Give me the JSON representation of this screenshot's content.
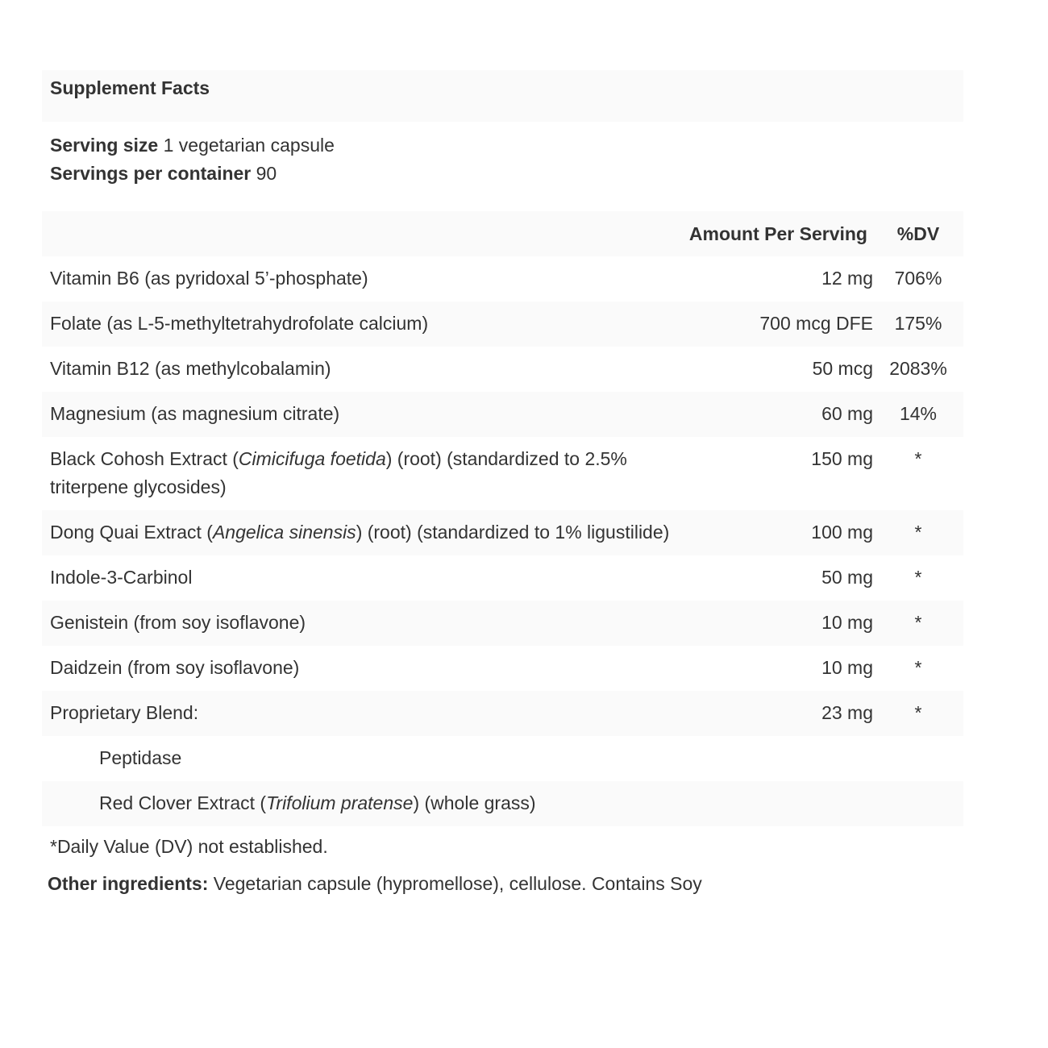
{
  "title": "Supplement Facts",
  "serving": {
    "size_label": "Serving size",
    "size_value": "1 vegetarian capsule",
    "per_container_label": "Servings per container",
    "per_container_value": "90"
  },
  "table": {
    "headers": {
      "name": "",
      "amount": "Amount Per Serving",
      "dv": "%DV"
    },
    "rows": [
      {
        "pre": "Vitamin B6 (as pyridoxal 5’-phosphate)",
        "italic": "",
        "post": "",
        "amount": "12 mg",
        "dv": "706%"
      },
      {
        "pre": "Folate (as L-5-methyltetrahydrofolate calcium)",
        "italic": "",
        "post": "",
        "amount": "700 mcg DFE",
        "dv": "175%"
      },
      {
        "pre": "Vitamin B12 (as methylcobalamin)",
        "italic": "",
        "post": "",
        "amount": "50 mcg",
        "dv": "2083%"
      },
      {
        "pre": "Magnesium (as magnesium citrate)",
        "italic": "",
        "post": "",
        "amount": "60 mg",
        "dv": "14%"
      },
      {
        "pre": "Black Cohosh Extract (",
        "italic": "Cimicifuga foetida",
        "post": ") (root) (standardized to 2.5% triterpene glycosides)",
        "amount": "150 mg",
        "dv": "*"
      },
      {
        "pre": "Dong Quai Extract (",
        "italic": "Angelica sinensis",
        "post": ") (root) (standardized to 1% ligustilide)",
        "amount": "100 mg",
        "dv": "*"
      },
      {
        "pre": "Indole-3-Carbinol",
        "italic": "",
        "post": "",
        "amount": "50 mg",
        "dv": "*"
      },
      {
        "pre": "Genistein (from soy isoflavone)",
        "italic": "",
        "post": "",
        "amount": "10 mg",
        "dv": "*"
      },
      {
        "pre": "Daidzein (from soy isoflavone)",
        "italic": "",
        "post": "",
        "amount": "10 mg",
        "dv": "*"
      },
      {
        "pre": "Proprietary Blend:",
        "italic": "",
        "post": "",
        "amount": "23 mg",
        "dv": "*"
      },
      {
        "pre": "Peptidase",
        "italic": "",
        "post": "",
        "amount": "",
        "dv": "",
        "sub": true
      },
      {
        "pre": "Red Clover Extract (",
        "italic": "Trifolium pratense",
        "post": ") (whole grass)",
        "amount": "",
        "dv": "",
        "sub": true
      }
    ]
  },
  "footnote": "*Daily Value (DV) not established.",
  "other_ingredients": {
    "label": "Other ingredients:",
    "value": " Vegetarian capsule (hypromellose), cellulose. Contains Soy"
  }
}
